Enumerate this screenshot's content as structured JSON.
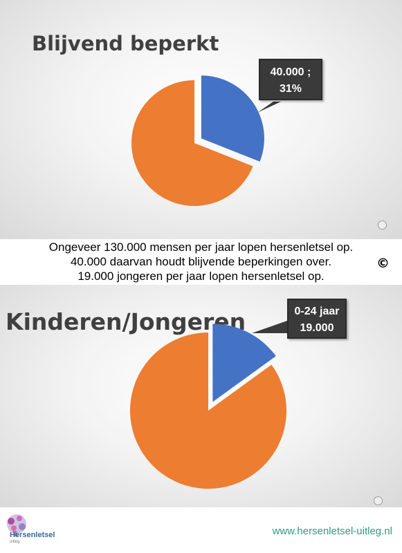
{
  "chart_data": [
    {
      "type": "pie",
      "title": "Blijvend beperkt",
      "slices": [
        {
          "label": "40.000 ; 31%",
          "value": 31,
          "color": "#4472c4",
          "exploded": true
        },
        {
          "label": "",
          "value": 69,
          "color": "#ed7d31",
          "exploded": false
        }
      ],
      "data_label": {
        "line1": "40.000 ;",
        "line2": "31%"
      }
    },
    {
      "type": "pie",
      "title": "Kinderen/Jongeren",
      "slices": [
        {
          "label": "0-24 jaar 19.000",
          "value": 15,
          "color": "#4472c4",
          "exploded": true
        },
        {
          "label": "",
          "value": 85,
          "color": "#ed7d31",
          "exploded": false
        }
      ],
      "data_label": {
        "line1": "0-24 jaar",
        "line2": "19.000"
      }
    }
  ],
  "caption": {
    "line1": "Ongeveer 130.000 mensen per jaar lopen hersenletsel op.",
    "line2": "40.000 daarvan houdt blijvende beperkingen over.",
    "line3": "19.000 jongeren per jaar lopen hersenletsel op.",
    "copyright": "©"
  },
  "footer": {
    "logo_text": "Hersenletsel",
    "logo_sub": "uitleg",
    "url": "www.hersenletsel-uitleg.nl"
  },
  "colors": {
    "blue": "#4472c4",
    "orange": "#ed7d31",
    "callout_bg": "#3a3a3a",
    "url_green": "#2e9c7e"
  }
}
